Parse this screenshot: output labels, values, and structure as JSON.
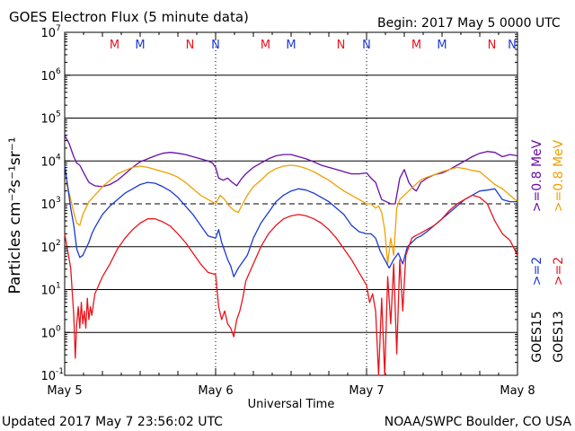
{
  "header": {
    "title": "GOES Electron Flux (5 minute data)",
    "begin": "Begin: 2017 May 5 0000 UTC"
  },
  "footer": {
    "updated": "Updated 2017 May  7 23:56:02 UTC",
    "credit": "NOAA/SWPC Boulder, CO USA"
  },
  "colors": {
    "goes15_08": "#6a0dad",
    "goes13_08": "#f0a000",
    "goes15_2": "#1a3ad6",
    "goes13_2": "#e8141c",
    "m_marker": "#e8141c",
    "n_marker_red": "#e8141c",
    "n_marker_blue": "#1a3ad6"
  },
  "chart_data": {
    "type": "line",
    "title": "GOES Electron Flux (5 minute data)",
    "xlabel": "Universal Time",
    "ylabel": "Particles cm⁻²s⁻¹sr⁻¹",
    "x_ticks": [
      "May 5",
      "May 6",
      "May 7",
      "May 8"
    ],
    "xlim_days": [
      0,
      3
    ],
    "ylim_log10": [
      -1,
      7
    ],
    "y_scale": "log",
    "y_ticks": [
      {
        "exp": 7,
        "label": "10",
        "sup": "7"
      },
      {
        "exp": 6,
        "label": "10",
        "sup": "6"
      },
      {
        "exp": 5,
        "label": "10",
        "sup": "5"
      },
      {
        "exp": 4,
        "label": "10",
        "sup": "4"
      },
      {
        "exp": 3,
        "label": "10",
        "sup": "3"
      },
      {
        "exp": 2,
        "label": "10",
        "sup": "2"
      },
      {
        "exp": 1,
        "label": "10",
        "sup": "1"
      },
      {
        "exp": 0,
        "label": "10",
        "sup": "0"
      },
      {
        "exp": -1,
        "label": "10",
        "sup": "-1"
      }
    ],
    "gridlines_log10": [
      6,
      5,
      4,
      2,
      1,
      0
    ],
    "dashed_threshold_log10": 3,
    "markers": [
      {
        "day": 0.33,
        "label": "M",
        "color": "#e8141c"
      },
      {
        "day": 0.5,
        "label": "M",
        "color": "#1a3ad6"
      },
      {
        "day": 0.83,
        "label": "N",
        "color": "#e8141c"
      },
      {
        "day": 1.0,
        "label": "N",
        "color": "#1a3ad6"
      },
      {
        "day": 1.33,
        "label": "M",
        "color": "#e8141c"
      },
      {
        "day": 1.5,
        "label": "M",
        "color": "#1a3ad6"
      },
      {
        "day": 1.83,
        "label": "N",
        "color": "#e8141c"
      },
      {
        "day": 2.0,
        "label": "N",
        "color": "#1a3ad6"
      },
      {
        "day": 2.33,
        "label": "M",
        "color": "#e8141c"
      },
      {
        "day": 2.5,
        "label": "M",
        "color": "#1a3ad6"
      },
      {
        "day": 2.83,
        "label": "N",
        "color": "#e8141c"
      },
      {
        "day": 3.0,
        "label": "N",
        "color": "#1a3ad6"
      }
    ],
    "right_labels": {
      "goes15_08": ">=0.8  MeV",
      "goes13_08": ">=0.8  MeV",
      "goes15_2": ">=2",
      "goes13_2": ">=2",
      "goes15": "GOES15",
      "goes13": "GOES13"
    },
    "series": [
      {
        "name": "GOES15 >=0.8 MeV",
        "color": "#6a0dad",
        "x": [
          0.0,
          0.03,
          0.06,
          0.08,
          0.1,
          0.13,
          0.16,
          0.2,
          0.25,
          0.3,
          0.35,
          0.4,
          0.45,
          0.5,
          0.55,
          0.6,
          0.65,
          0.7,
          0.75,
          0.8,
          0.85,
          0.9,
          0.95,
          0.98,
          1.0,
          1.02,
          1.05,
          1.08,
          1.11,
          1.14,
          1.17,
          1.2,
          1.25,
          1.3,
          1.35,
          1.4,
          1.45,
          1.5,
          1.55,
          1.6,
          1.65,
          1.7,
          1.75,
          1.8,
          1.85,
          1.9,
          1.95,
          2.0,
          2.03,
          2.06,
          2.08,
          2.1,
          2.13,
          2.16,
          2.19,
          2.22,
          2.25,
          2.28,
          2.31,
          2.33,
          2.36,
          2.4,
          2.45,
          2.5,
          2.55,
          2.6,
          2.65,
          2.7,
          2.75,
          2.8,
          2.85,
          2.9,
          2.95,
          3.0
        ],
        "y_log10": [
          4.6,
          4.4,
          4.1,
          3.95,
          3.9,
          3.7,
          3.5,
          3.42,
          3.4,
          3.45,
          3.55,
          3.7,
          3.85,
          3.98,
          4.05,
          4.12,
          4.18,
          4.2,
          4.18,
          4.15,
          4.1,
          4.05,
          4.0,
          3.95,
          3.85,
          3.6,
          3.55,
          3.6,
          3.5,
          3.42,
          3.58,
          3.7,
          3.85,
          3.95,
          4.05,
          4.12,
          4.15,
          4.15,
          4.1,
          4.05,
          3.98,
          3.9,
          3.85,
          3.8,
          3.75,
          3.7,
          3.7,
          3.72,
          3.6,
          3.5,
          3.3,
          3.1,
          3.05,
          3.0,
          3.0,
          3.6,
          3.8,
          3.5,
          3.35,
          3.3,
          3.5,
          3.6,
          3.68,
          3.72,
          3.8,
          3.9,
          4.0,
          4.1,
          4.18,
          4.22,
          4.2,
          4.1,
          4.15,
          4.12
        ]
      },
      {
        "name": "GOES13 >=0.8 MeV",
        "color": "#f0a000",
        "x": [
          0.0,
          0.02,
          0.04,
          0.06,
          0.08,
          0.1,
          0.12,
          0.14,
          0.16,
          0.2,
          0.25,
          0.3,
          0.35,
          0.4,
          0.45,
          0.5,
          0.55,
          0.6,
          0.65,
          0.7,
          0.75,
          0.8,
          0.85,
          0.9,
          0.95,
          1.0,
          1.03,
          1.06,
          1.09,
          1.12,
          1.15,
          1.18,
          1.21,
          1.25,
          1.3,
          1.35,
          1.4,
          1.45,
          1.5,
          1.55,
          1.6,
          1.65,
          1.7,
          1.75,
          1.8,
          1.85,
          1.9,
          1.95,
          2.0,
          2.03,
          2.06,
          2.08,
          2.1,
          2.12,
          2.14,
          2.16,
          2.18,
          2.2,
          2.22,
          2.25,
          2.28,
          2.31,
          2.34,
          2.37,
          2.4,
          2.45,
          2.5,
          2.55,
          2.6,
          2.65,
          2.7,
          2.75,
          2.8,
          2.85,
          2.9,
          2.95,
          3.0
        ],
        "y_log10": [
          3.5,
          3.4,
          3.1,
          2.8,
          2.55,
          2.5,
          2.75,
          2.9,
          3.05,
          3.2,
          3.4,
          3.55,
          3.7,
          3.78,
          3.85,
          3.88,
          3.85,
          3.8,
          3.75,
          3.7,
          3.62,
          3.5,
          3.35,
          3.2,
          3.1,
          3.0,
          3.2,
          3.1,
          2.95,
          2.85,
          2.8,
          3.0,
          3.2,
          3.4,
          3.55,
          3.72,
          3.82,
          3.88,
          3.9,
          3.88,
          3.82,
          3.75,
          3.65,
          3.55,
          3.42,
          3.3,
          3.2,
          3.1,
          3.0,
          3.0,
          2.9,
          2.95,
          2.8,
          2.4,
          1.6,
          2.2,
          1.8,
          2.9,
          3.1,
          3.2,
          3.3,
          3.4,
          3.5,
          3.58,
          3.62,
          3.68,
          3.75,
          3.8,
          3.85,
          3.82,
          3.78,
          3.75,
          3.6,
          3.45,
          3.35,
          3.2,
          3.05
        ]
      },
      {
        "name": "GOES15 >=2 MeV",
        "color": "#1a3ad6",
        "x": [
          0.0,
          0.02,
          0.04,
          0.06,
          0.08,
          0.1,
          0.12,
          0.14,
          0.16,
          0.18,
          0.2,
          0.25,
          0.3,
          0.35,
          0.4,
          0.45,
          0.5,
          0.55,
          0.6,
          0.65,
          0.7,
          0.75,
          0.8,
          0.85,
          0.9,
          0.95,
          1.0,
          1.02,
          1.04,
          1.06,
          1.08,
          1.1,
          1.12,
          1.15,
          1.18,
          1.21,
          1.25,
          1.3,
          1.35,
          1.4,
          1.45,
          1.5,
          1.55,
          1.6,
          1.65,
          1.7,
          1.75,
          1.8,
          1.85,
          1.9,
          1.95,
          2.0,
          2.03,
          2.06,
          2.09,
          2.12,
          2.15,
          2.18,
          2.21,
          2.24,
          2.27,
          2.3,
          2.33,
          2.36,
          2.4,
          2.45,
          2.5,
          2.55,
          2.6,
          2.65,
          2.7,
          2.75,
          2.8,
          2.85,
          2.9,
          2.95,
          3.0
        ],
        "y_log10": [
          3.9,
          3.4,
          2.9,
          2.5,
          1.95,
          1.75,
          1.8,
          1.95,
          2.1,
          2.3,
          2.45,
          2.75,
          2.95,
          3.1,
          3.25,
          3.35,
          3.45,
          3.5,
          3.48,
          3.4,
          3.3,
          3.15,
          2.95,
          2.75,
          2.5,
          2.25,
          2.2,
          2.4,
          2.1,
          1.9,
          1.7,
          1.55,
          1.3,
          1.5,
          1.65,
          1.8,
          2.2,
          2.55,
          2.8,
          3.05,
          3.2,
          3.3,
          3.35,
          3.32,
          3.25,
          3.15,
          3.05,
          2.9,
          2.75,
          2.5,
          2.35,
          2.3,
          2.3,
          2.2,
          1.9,
          1.7,
          1.5,
          1.7,
          1.85,
          1.6,
          2.0,
          2.1,
          2.2,
          2.25,
          2.35,
          2.5,
          2.65,
          2.8,
          2.95,
          3.1,
          3.2,
          3.3,
          3.32,
          3.35,
          3.1,
          3.05,
          3.05
        ]
      },
      {
        "name": "GOES13 >=2 MeV",
        "color": "#e8141c",
        "x": [
          0.0,
          0.02,
          0.04,
          0.06,
          0.07,
          0.08,
          0.09,
          0.1,
          0.11,
          0.12,
          0.13,
          0.14,
          0.15,
          0.16,
          0.17,
          0.18,
          0.2,
          0.25,
          0.3,
          0.35,
          0.4,
          0.45,
          0.5,
          0.55,
          0.6,
          0.65,
          0.7,
          0.75,
          0.8,
          0.85,
          0.9,
          0.95,
          1.0,
          1.02,
          1.04,
          1.06,
          1.08,
          1.1,
          1.12,
          1.14,
          1.16,
          1.18,
          1.2,
          1.25,
          1.3,
          1.35,
          1.4,
          1.45,
          1.5,
          1.55,
          1.6,
          1.65,
          1.7,
          1.75,
          1.8,
          1.85,
          1.9,
          1.95,
          2.0,
          2.02,
          2.04,
          2.06,
          2.08,
          2.1,
          2.12,
          2.14,
          2.16,
          2.18,
          2.2,
          2.22,
          2.24,
          2.26,
          2.28,
          2.3,
          2.32,
          2.35,
          2.4,
          2.45,
          2.5,
          2.55,
          2.6,
          2.65,
          2.7,
          2.75,
          2.8,
          2.85,
          2.9,
          2.95,
          3.0
        ],
        "y_log10": [
          2.3,
          1.9,
          1.5,
          0.4,
          -0.6,
          0.2,
          0.6,
          0.1,
          0.7,
          0.2,
          0.5,
          0.1,
          0.8,
          0.3,
          0.6,
          0.4,
          0.9,
          1.3,
          1.6,
          1.95,
          2.2,
          2.4,
          2.55,
          2.65,
          2.65,
          2.58,
          2.48,
          2.3,
          2.1,
          1.85,
          1.6,
          1.4,
          1.35,
          0.6,
          0.3,
          0.5,
          0.2,
          0.1,
          -0.1,
          0.3,
          0.5,
          0.8,
          1.2,
          1.6,
          2.0,
          2.3,
          2.5,
          2.65,
          2.72,
          2.75,
          2.72,
          2.65,
          2.55,
          2.4,
          2.2,
          1.95,
          1.7,
          1.4,
          1.1,
          0.7,
          0.9,
          0.5,
          -1.0,
          0.8,
          -1.0,
          1.3,
          0.2,
          1.6,
          -0.5,
          1.7,
          0.5,
          1.8,
          2.0,
          2.2,
          2.25,
          2.3,
          2.4,
          2.5,
          2.65,
          2.85,
          3.0,
          3.1,
          3.2,
          3.15,
          3.0,
          2.6,
          2.3,
          2.15,
          1.8
        ]
      }
    ]
  }
}
